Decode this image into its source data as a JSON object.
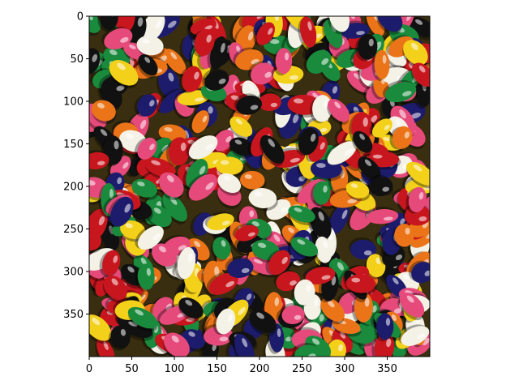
{
  "chart_data": {
    "type": "image",
    "title": "",
    "xlabel": "",
    "ylabel": "",
    "x_ticks": [
      0,
      50,
      100,
      150,
      200,
      250,
      300,
      350
    ],
    "y_ticks": [
      0,
      50,
      100,
      150,
      200,
      250,
      300,
      350
    ],
    "xlim": [
      0,
      400
    ],
    "ylim": [
      400,
      0
    ],
    "image_size": [
      400,
      400
    ],
    "grid": false,
    "legend": "none",
    "image_content": "jelly beans",
    "bean_colors": [
      "#c8161e",
      "#f3d11a",
      "#eb7418",
      "#1d1c6c",
      "#f4f1e6",
      "#1a8a3c",
      "#e54a7b",
      "#111111"
    ]
  }
}
